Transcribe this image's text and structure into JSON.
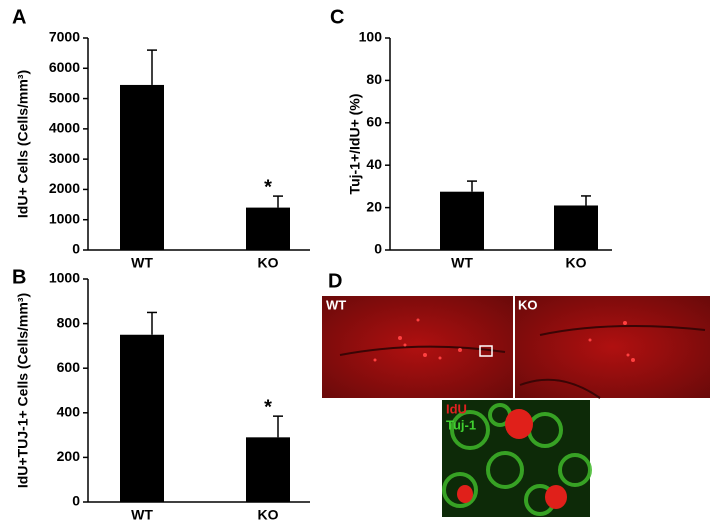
{
  "chart_data": [
    {
      "type": "bar",
      "panel": "A",
      "ylabel": "IdU+ Cells (Cells/mm³)",
      "categories": [
        "WT",
        "KO"
      ],
      "values": [
        5450,
        1400
      ],
      "errors": [
        1150,
        380
      ],
      "annotations": [
        null,
        "*"
      ],
      "color": "#000000",
      "ylim": [
        0,
        7000
      ],
      "yticks": [
        0,
        1000,
        2000,
        3000,
        4000,
        5000,
        6000,
        7000
      ]
    },
    {
      "type": "bar",
      "panel": "B",
      "ylabel": "IdU+TUJ-1+ Cells (Cells/mm³)",
      "categories": [
        "WT",
        "KO"
      ],
      "values": [
        750,
        290
      ],
      "errors": [
        100,
        95
      ],
      "annotations": [
        null,
        "*"
      ],
      "color": "#000000",
      "ylim": [
        0,
        1000
      ],
      "yticks": [
        0,
        200,
        400,
        600,
        800,
        1000
      ]
    },
    {
      "type": "bar",
      "panel": "C",
      "ylabel": "Tuj-1+/IdU+ (%)",
      "categories": [
        "WT",
        "KO"
      ],
      "values": [
        27.5,
        21
      ],
      "errors": [
        5,
        4.5
      ],
      "annotations": [
        null,
        null
      ],
      "color": "#000000",
      "ylim": [
        0,
        100
      ],
      "yticks": [
        0,
        20,
        40,
        60,
        80,
        100
      ]
    }
  ],
  "images": {
    "panel": "D",
    "left_label": "WT",
    "right_label": "KO",
    "inset_labels": [
      "IdU",
      "Tuj-1"
    ]
  }
}
